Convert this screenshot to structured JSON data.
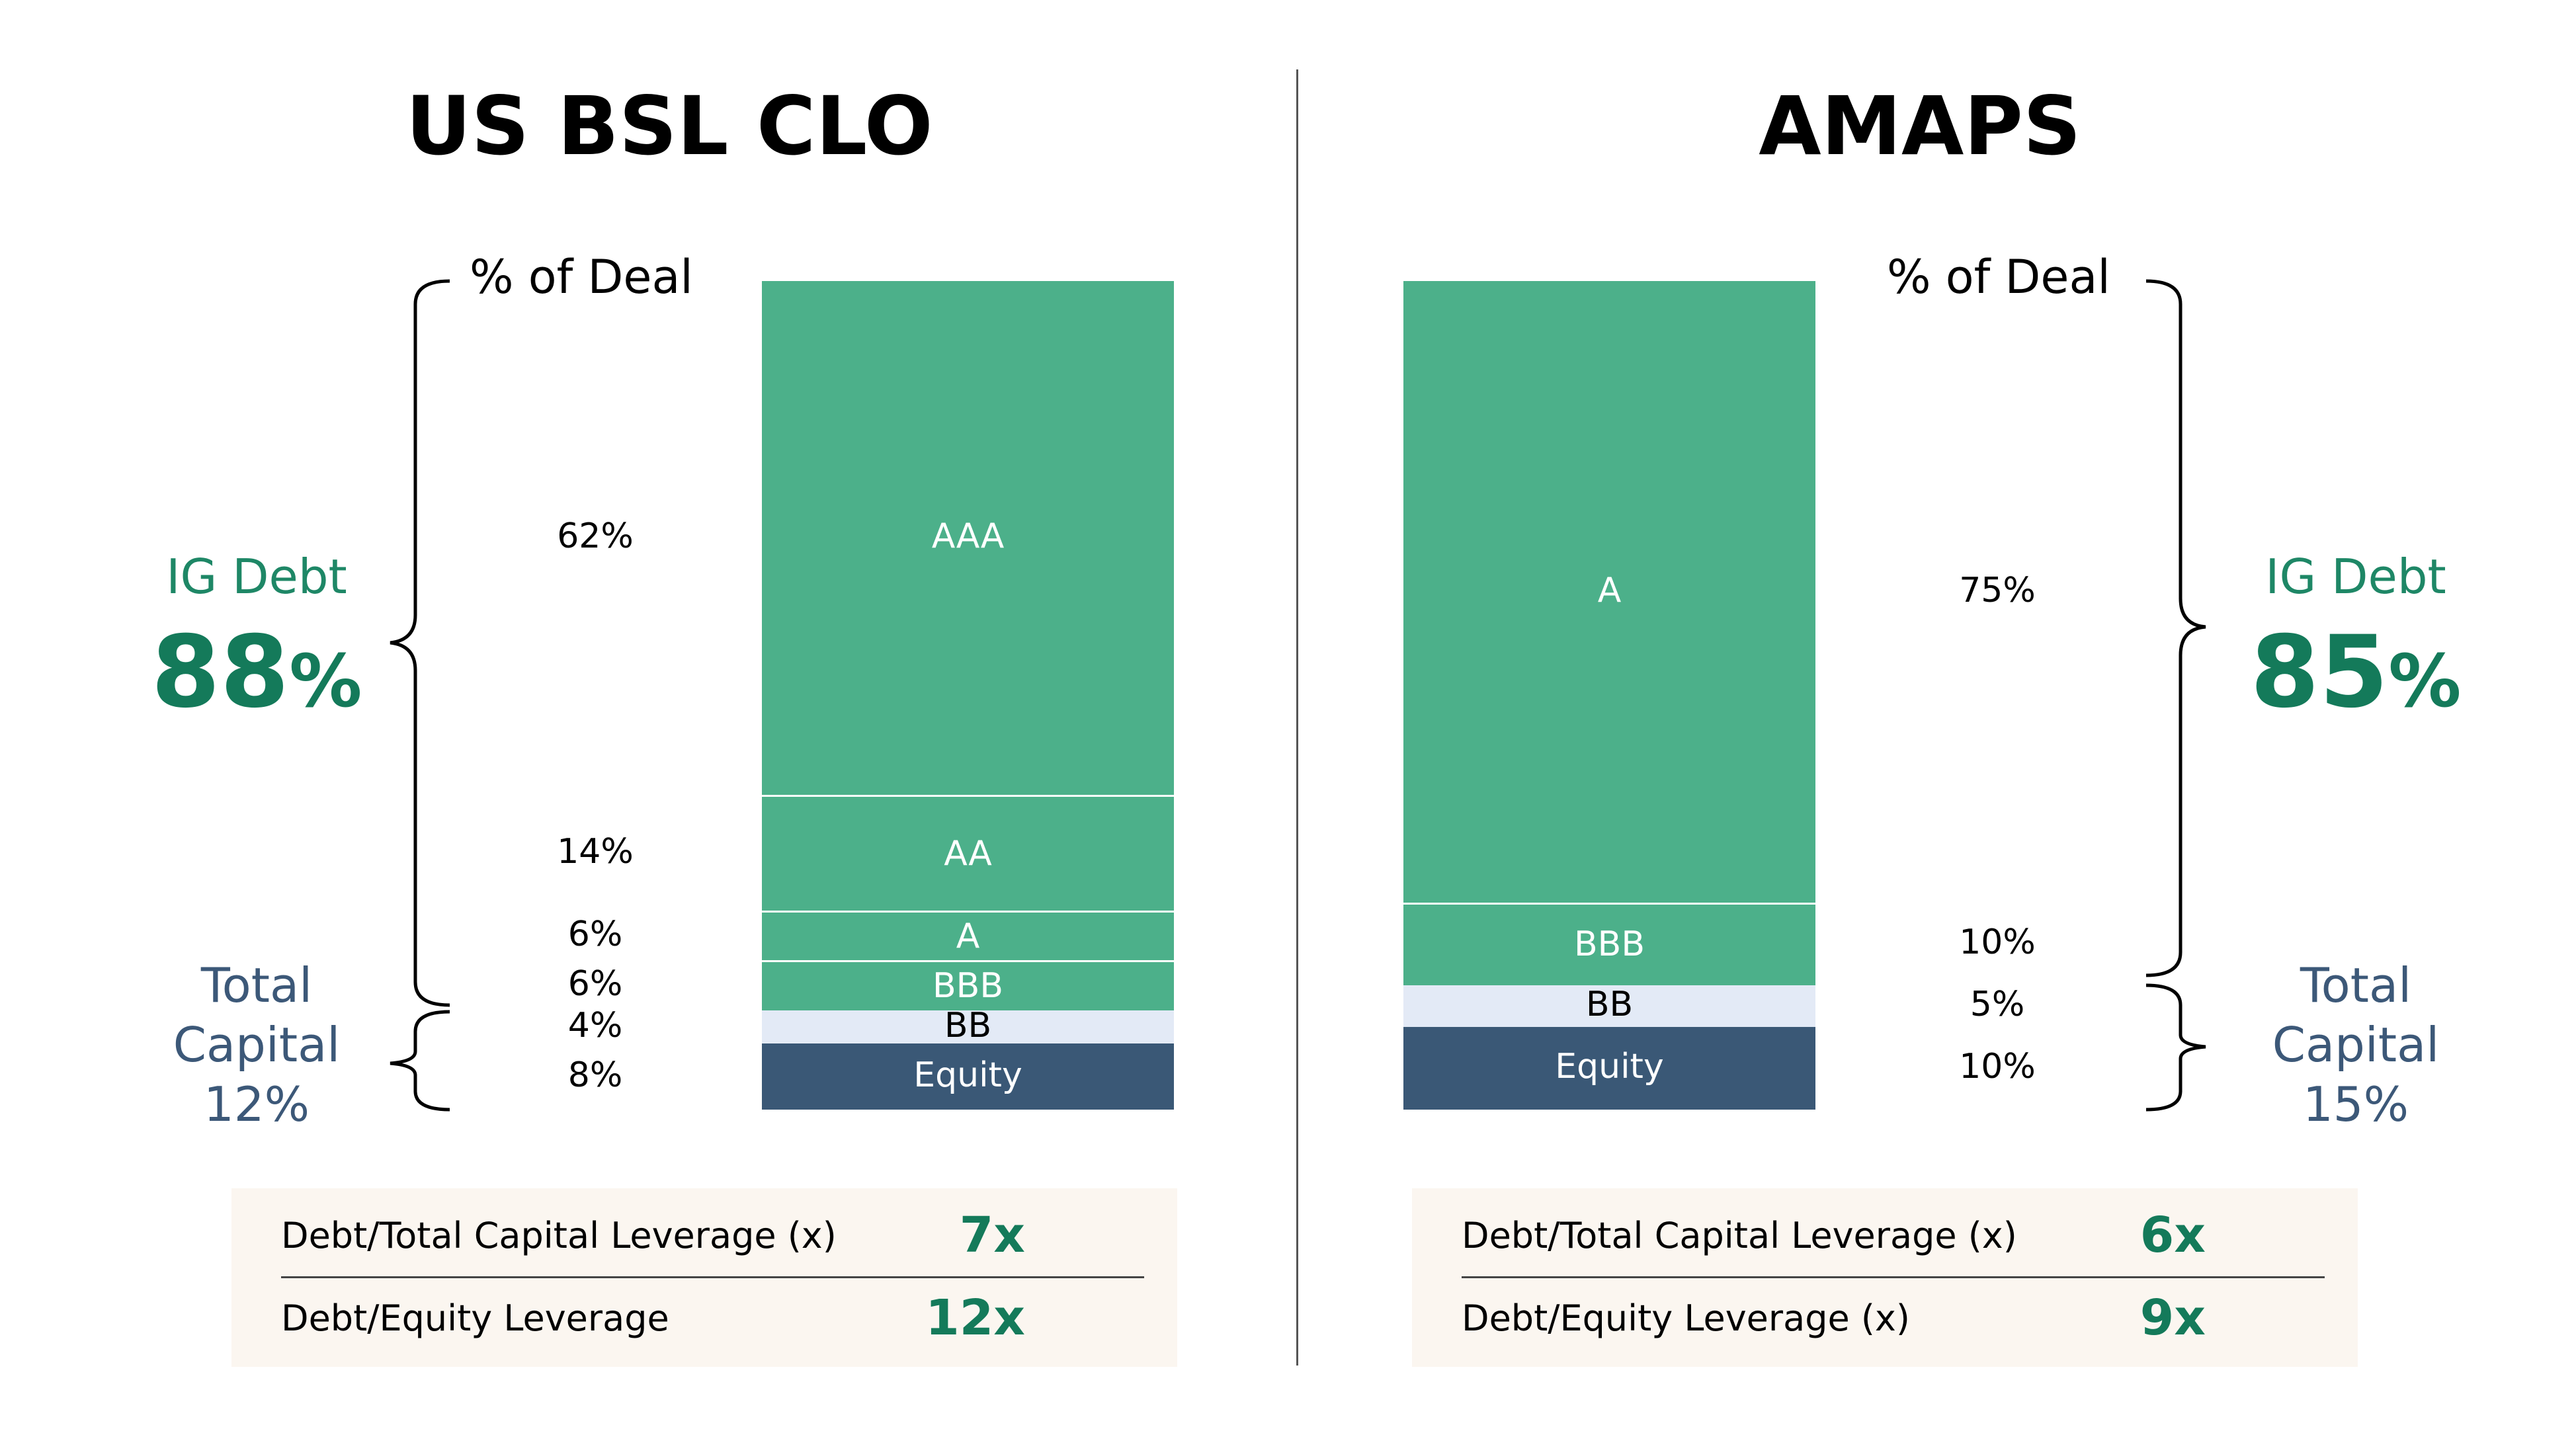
{
  "colors": {
    "ig_green": "#4cb08a",
    "bb_light": "#e3eaf6",
    "equity_navy": "#3a5876",
    "summary_green": "#147a5a",
    "summary_navy": "#3c5878",
    "box_bg": "#fbf6f0"
  },
  "chart_data": [
    {
      "type": "bar",
      "stacked": true,
      "title": "US BSL CLO",
      "header": "% of Deal",
      "categories": [
        "US BSL CLO"
      ],
      "series": [
        {
          "name": "AAA",
          "values": [
            62
          ],
          "label": "62%"
        },
        {
          "name": "AA",
          "values": [
            14
          ],
          "label": "14%"
        },
        {
          "name": "A",
          "values": [
            6
          ],
          "label": "6%"
        },
        {
          "name": "BBB",
          "values": [
            6
          ],
          "label": "6%"
        },
        {
          "name": "BB",
          "values": [
            4
          ],
          "label": "4%"
        },
        {
          "name": "Equity",
          "values": [
            8
          ],
          "label": "8%"
        }
      ],
      "ylim": [
        0,
        100
      ],
      "summary": {
        "ig_label": "IG Debt",
        "ig_value": "88",
        "ig_unit": "%",
        "tc_line1": "Total",
        "tc_line2": "Capital",
        "tc_value": "12%"
      },
      "leverage": [
        {
          "label": "Debt/Total Capital Leverage (x)",
          "value": "7x"
        },
        {
          "label": "Debt/Equity Leverage",
          "value": "12x"
        }
      ]
    },
    {
      "type": "bar",
      "stacked": true,
      "title": "AMAPS",
      "header": "% of Deal",
      "categories": [
        "AMAPS"
      ],
      "series": [
        {
          "name": "A",
          "values": [
            75
          ],
          "label": "75%"
        },
        {
          "name": "BBB",
          "values": [
            10
          ],
          "label": "10%"
        },
        {
          "name": "BB",
          "values": [
            5
          ],
          "label": "5%"
        },
        {
          "name": "Equity",
          "values": [
            10
          ],
          "label": "10%"
        }
      ],
      "ylim": [
        0,
        100
      ],
      "summary": {
        "ig_label": "IG Debt",
        "ig_value": "85",
        "ig_unit": "%",
        "tc_line1": "Total",
        "tc_line2": "Capital",
        "tc_value": "15%"
      },
      "leverage": [
        {
          "label": "Debt/Total Capital Leverage (x)",
          "value": "6x"
        },
        {
          "label": "Debt/Equity Leverage (x)",
          "value": "9x"
        }
      ]
    }
  ]
}
